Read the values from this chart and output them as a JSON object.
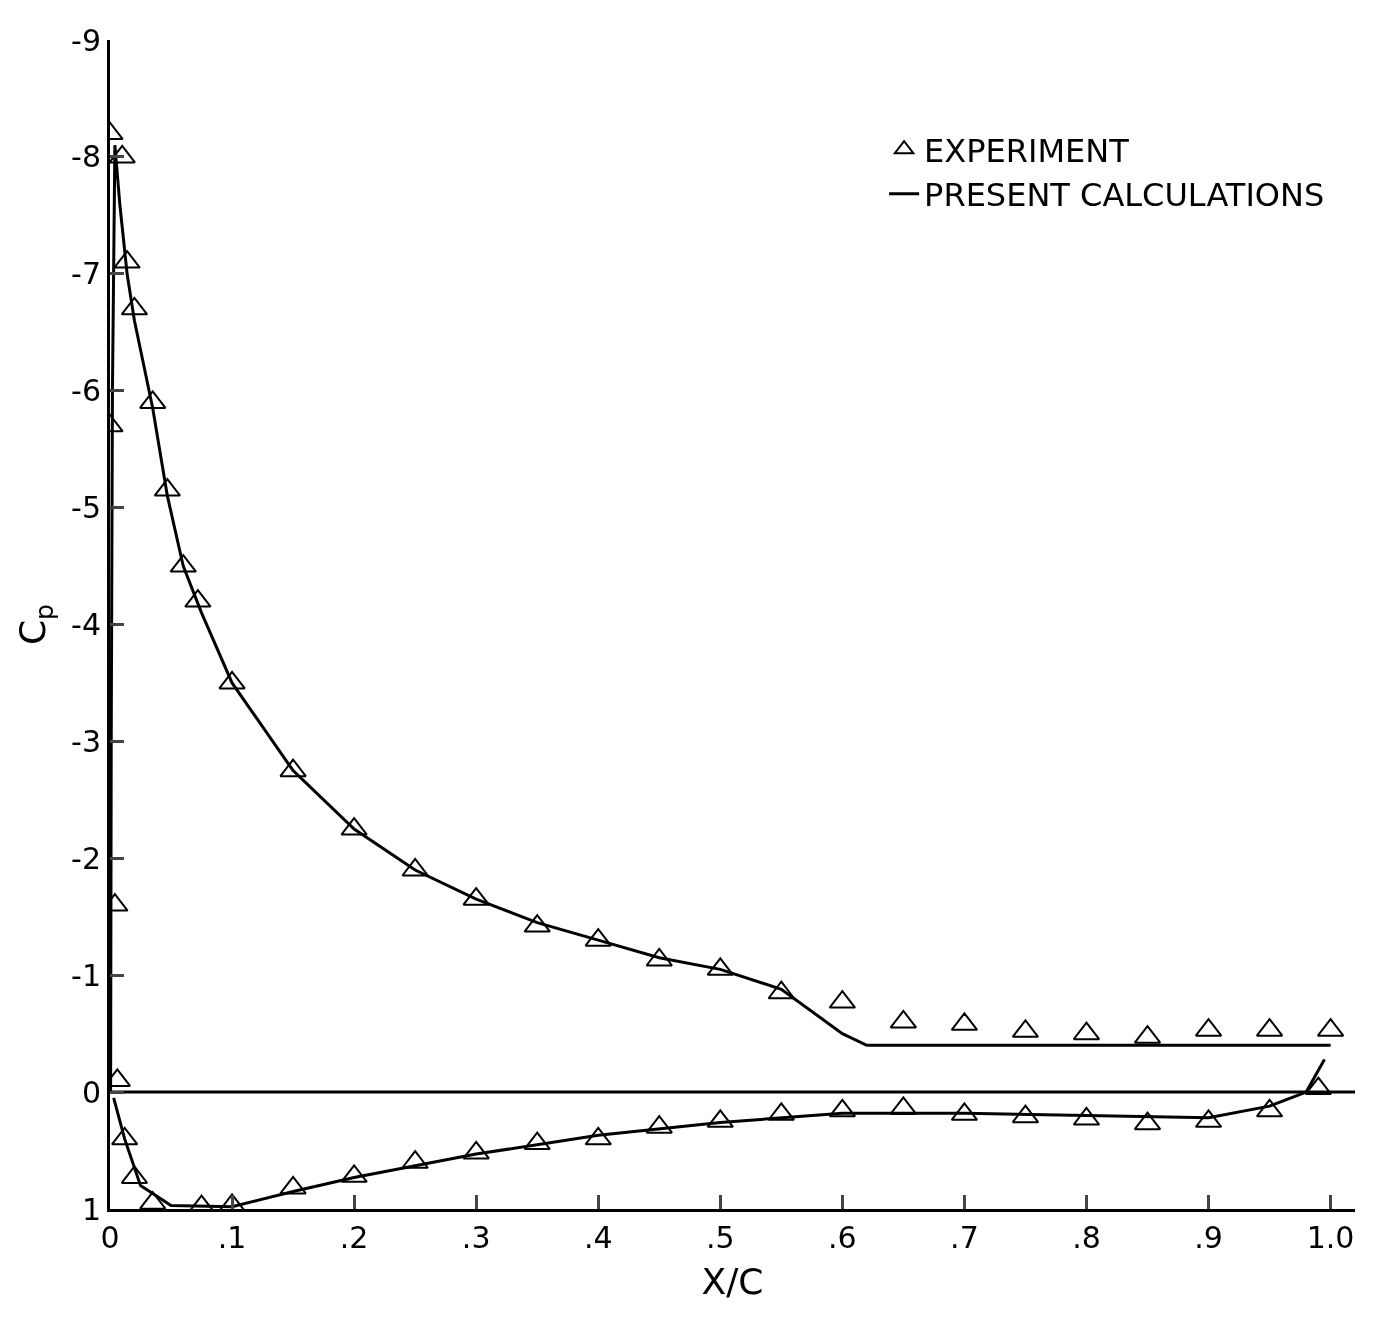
{
  "chart_data": {
    "type": "scatter",
    "xlabel": "X/C",
    "ylabel": "C$_{p}$",
    "xlim": [
      0,
      1.02
    ],
    "ylim": [
      1,
      -9
    ],
    "xticks": [
      {
        "value": 0,
        "label": "0"
      },
      {
        "value": 0.1,
        "label": ".1"
      },
      {
        "value": 0.2,
        "label": ".2"
      },
      {
        "value": 0.3,
        "label": ".3"
      },
      {
        "value": 0.4,
        "label": ".4"
      },
      {
        "value": 0.5,
        "label": ".5"
      },
      {
        "value": 0.6,
        "label": ".6"
      },
      {
        "value": 0.7,
        "label": ".7"
      },
      {
        "value": 0.8,
        "label": ".8"
      },
      {
        "value": 0.9,
        "label": ".9"
      },
      {
        "value": 1.0,
        "label": "1.0"
      }
    ],
    "yticks": [
      -9,
      -8,
      -7,
      -6,
      -5,
      -4,
      -3,
      -2,
      -1,
      0,
      1
    ],
    "grid": false,
    "legend": "top right",
    "ref_lines": [
      {
        "axis": "y",
        "value": 0,
        "color": "#000000"
      }
    ],
    "series": [
      {
        "name": "EXPERIMENT",
        "marker": "triangle",
        "color": "#000000",
        "x": [
          0.0,
          0.01,
          0.014,
          0.02,
          0.035,
          0.047,
          0.06,
          0.072,
          0.1,
          0.15,
          0.2,
          0.25,
          0.3,
          0.35,
          0.4,
          0.45,
          0.5,
          0.55,
          0.6,
          0.65,
          0.7,
          0.75,
          0.8,
          0.85,
          0.9,
          0.95,
          1.0,
          0.0,
          0.004,
          0.006,
          0.012,
          0.02,
          0.035,
          0.075,
          0.1,
          0.15,
          0.2,
          0.25,
          0.3,
          0.35,
          0.4,
          0.45,
          0.5,
          0.55,
          0.6,
          0.65,
          0.7,
          0.75,
          0.8,
          0.85,
          0.9,
          0.95,
          0.99
        ],
        "values": [
          -8.2,
          -8.0,
          -7.1,
          -6.7,
          -5.9,
          -5.15,
          -4.5,
          -4.2,
          -3.5,
          -2.75,
          -2.25,
          -1.9,
          -1.65,
          -1.42,
          -1.3,
          -1.13,
          -1.05,
          -0.85,
          -0.77,
          -0.6,
          -0.58,
          -0.52,
          -0.5,
          -0.47,
          -0.53,
          -0.53,
          -0.53,
          -5.7,
          -1.6,
          -0.1,
          0.4,
          0.73,
          0.95,
          0.98,
          0.97,
          0.82,
          0.72,
          0.6,
          0.52,
          0.44,
          0.4,
          0.3,
          0.25,
          0.19,
          0.16,
          0.14,
          0.19,
          0.21,
          0.23,
          0.27,
          0.25,
          0.16,
          -0.03
        ]
      },
      {
        "name": "PRESENT CALCULATIONS",
        "type": "line",
        "marker": "none",
        "line_style": "solid",
        "color": "#000000",
        "x": [
          0.0005,
          0.001,
          0.002,
          0.004,
          0.008,
          0.014,
          0.02,
          0.035,
          0.047,
          0.06,
          0.075,
          0.1,
          0.15,
          0.2,
          0.25,
          0.3,
          0.35,
          0.4,
          0.45,
          0.5,
          0.55,
          0.6,
          0.62,
          0.8,
          1.0
        ],
        "values": [
          0.0,
          -3.0,
          -6.0,
          -8.1,
          -7.6,
          -7.0,
          -6.6,
          -5.85,
          -5.1,
          -4.5,
          -4.1,
          -3.5,
          -2.75,
          -2.25,
          -1.9,
          -1.65,
          -1.45,
          -1.3,
          -1.15,
          -1.05,
          -0.88,
          -0.5,
          -0.4,
          -0.4,
          -0.4
        ]
      },
      {
        "type": "line",
        "marker": "none",
        "line_style": "solid",
        "color": "#000000",
        "x": [
          0.003,
          0.012,
          0.025,
          0.05,
          0.1,
          0.15,
          0.2,
          0.3,
          0.4,
          0.5,
          0.6,
          0.7,
          0.8,
          0.9,
          0.95,
          0.98,
          0.995
        ],
        "values": [
          0.05,
          0.4,
          0.8,
          0.97,
          0.98,
          0.85,
          0.73,
          0.53,
          0.37,
          0.26,
          0.18,
          0.18,
          0.2,
          0.22,
          0.12,
          0.0,
          -0.28
        ]
      }
    ]
  }
}
